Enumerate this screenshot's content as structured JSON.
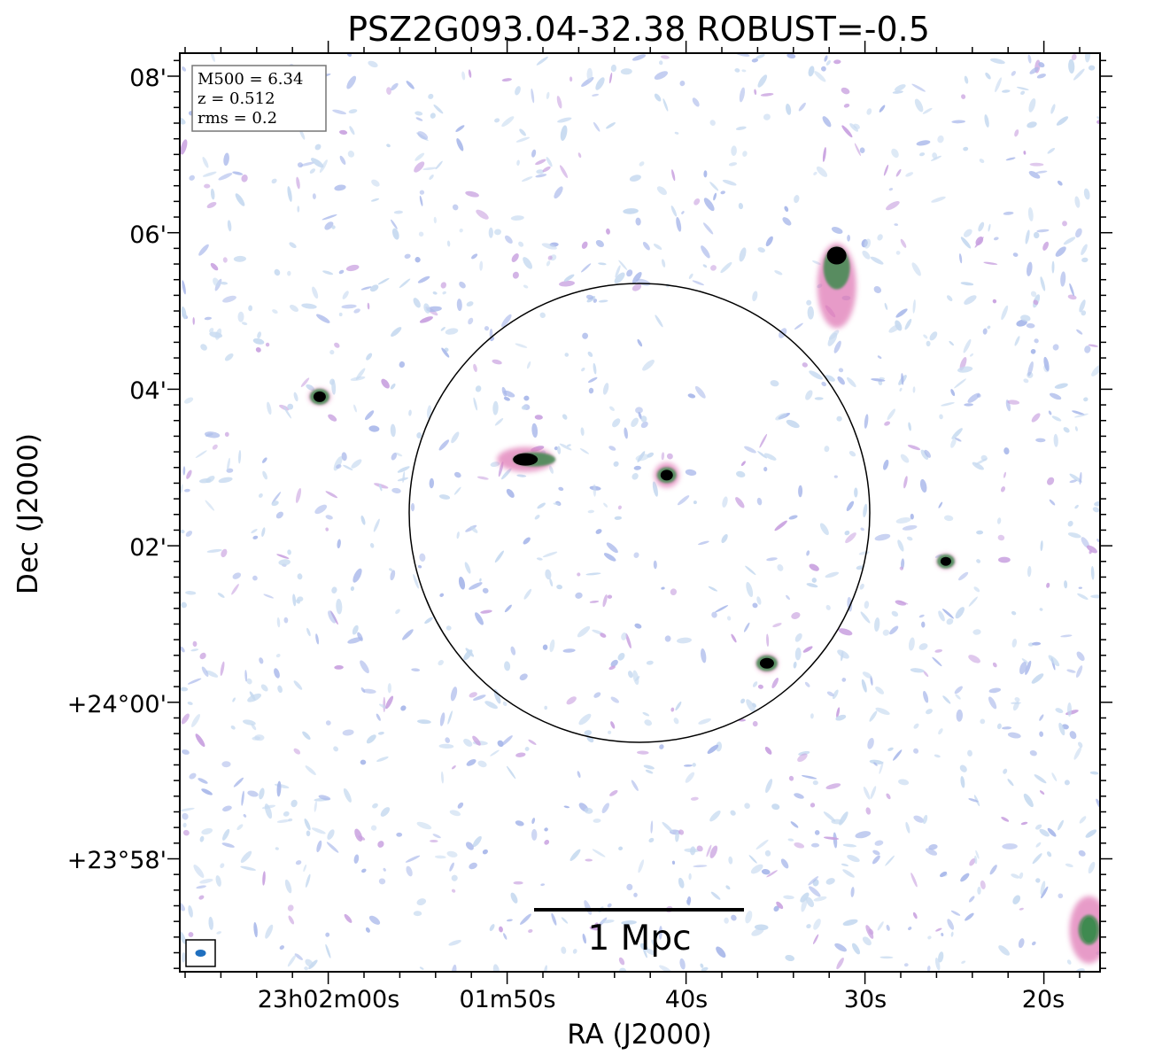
{
  "title": "PSZ2G093.04-32.38 ROBUST=-0.5",
  "axes": {
    "xlabel": "RA (J2000)",
    "ylabel": "Dec (J2000)",
    "xticks": [
      "23h02m00s",
      "01m50s",
      "40s",
      "30s",
      "20s"
    ],
    "yticks": [
      "08'",
      "06'",
      "04'",
      "02'",
      "+24°00'",
      "+23°58'"
    ]
  },
  "info_box": {
    "m500": "M500 = 6.34",
    "z": "z = 0.512",
    "rms": "rms = 0.2"
  },
  "scale_bar": {
    "label": "1 Mpc"
  },
  "colors": {
    "noise_light": "#c7daf0",
    "noise_blue": "#a9b8ea",
    "noise_violet": "#c9a2e0",
    "source_pink": "#e07ab6",
    "source_green": "#3f8a50",
    "source_core": "#000000",
    "beam": "#1f6fbf"
  },
  "sources": [
    {
      "name": "bright-source-north",
      "ra_s": 31.6,
      "dec_arcmin": 5.7
    },
    {
      "name": "source-west",
      "ra_s": 60.5,
      "dec_arcmin": 3.9
    },
    {
      "name": "source-center-left",
      "ra_s": 49.0,
      "dec_arcmin": 3.1
    },
    {
      "name": "source-center",
      "ra_s": 41.1,
      "dec_arcmin": 2.9
    },
    {
      "name": "source-east",
      "ra_s": 25.5,
      "dec_arcmin": 1.8
    },
    {
      "name": "source-south",
      "ra_s": 35.5,
      "dec_arcmin": 0.5
    },
    {
      "name": "source-corner-se",
      "ra_s": 17.5,
      "dec_arcmin": -2.9
    }
  ]
}
